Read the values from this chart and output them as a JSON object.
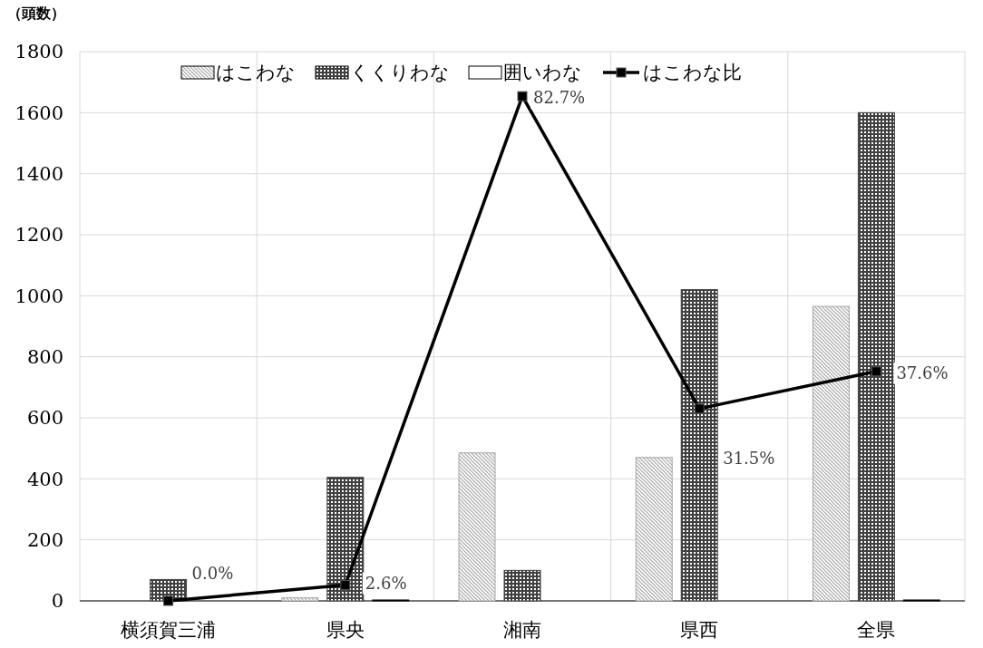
{
  "chart_data": {
    "type": "bar",
    "ylabel": "（頭数）",
    "categories": [
      "横須賀三浦",
      "県央",
      "湘南",
      "県西",
      "全県"
    ],
    "series": [
      {
        "name": "はこわな",
        "color": "#a6a6a6",
        "values": [
          0,
          10,
          485,
          470,
          965
        ]
      },
      {
        "name": "くくりわな",
        "color": "#404040",
        "values": [
          70,
          405,
          100,
          1020,
          1600
        ]
      },
      {
        "name": "囲いわな",
        "color": "#ffffff",
        "values": [
          0,
          3,
          0,
          0,
          3
        ]
      },
      {
        "name": "はこわな比",
        "type": "line",
        "axis": "y2",
        "color": "#000000",
        "values": [
          0,
          2.6,
          82.7,
          31.5,
          37.6
        ],
        "value_labels": [
          "0.0%",
          "2.6%",
          "82.7%",
          "31.5%",
          "37.6%"
        ]
      }
    ],
    "ylim": [
      0,
      1800
    ],
    "yticks": [
      0,
      200,
      400,
      600,
      800,
      1000,
      1200,
      1400,
      1600,
      1800
    ],
    "y2lim": [
      0,
      90
    ],
    "tick_labels": "xy",
    "grid": true,
    "legend": "top",
    "marker": "square",
    "line_style": "solid"
  }
}
